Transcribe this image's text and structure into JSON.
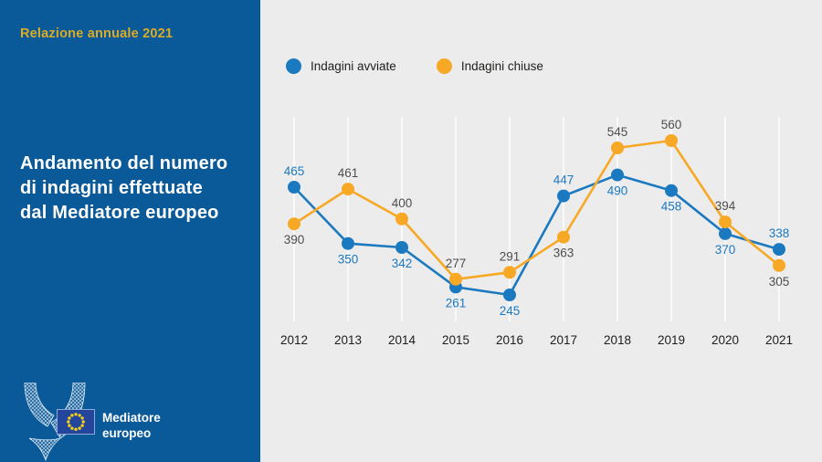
{
  "sidebar": {
    "report_title": "Relazione annuale 2021",
    "chart_heading": "Andamento del numero\ndi indagini effettuate\ndal Mediatore europeo",
    "logo_text_line1": "Mediatore",
    "logo_text_line2": "europeo"
  },
  "colors": {
    "sidebar_blue": "#0a5a9a",
    "accent_gold": "#dcab25",
    "series_blue": "#1b79c0",
    "series_orange": "#f7a824",
    "canvas_gray": "#ececec",
    "gridline_white": "#fafafa",
    "value_label_gray": "#4d4d4d",
    "text_dark": "#1d1d1b",
    "eu_flag_blue": "#23459c",
    "eu_star_yellow": "#f7d117"
  },
  "chart_data": {
    "type": "line",
    "title": "Andamento del numero di indagini effettuate dal Mediatore europeo",
    "xlabel": "",
    "ylabel": "",
    "categories": [
      "2012",
      "2013",
      "2014",
      "2015",
      "2016",
      "2017",
      "2018",
      "2019",
      "2020",
      "2021"
    ],
    "series": [
      {
        "name": "Indagini avviate",
        "color": "#1b79c0",
        "label_color": "#1b79c0",
        "values": [
          465,
          350,
          342,
          261,
          245,
          447,
          490,
          458,
          370,
          338
        ]
      },
      {
        "name": "Indagini chiuse",
        "color": "#f7a824",
        "label_color": "#4d4d4d",
        "values": [
          390,
          461,
          400,
          277,
          291,
          363,
          545,
          560,
          394,
          305
        ]
      }
    ],
    "ylim": [
      200,
      600
    ],
    "grid": "vertical-only",
    "legend_position": "top",
    "point_labels": "shown"
  }
}
